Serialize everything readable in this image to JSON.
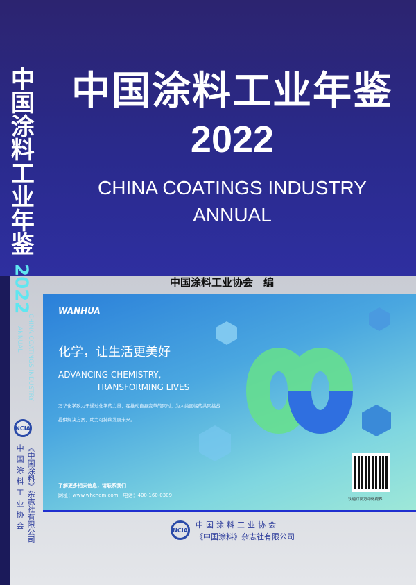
{
  "cover": {
    "title_cn": "中国涂料工业年鉴",
    "year": "2022",
    "title_en_line1": "CHINA COATINGS INDUSTRY",
    "title_en_line2": "ANNUAL",
    "editor": "中国涂料工业协会　编"
  },
  "spine": {
    "title_cn": "中国涂料工业年鉴",
    "year": "2022",
    "title_en_line1": "CHINA COATINGS INDUSTRY",
    "title_en_line2": "ANNUAL",
    "logo": "NCIA",
    "org1": "中国涂料工业协会",
    "org2": "《中国涂料》杂志社有限公司"
  },
  "ad": {
    "brand": "WANHUA",
    "slogan": "化学，让生活更美好",
    "en_line1": "ADVANCING CHEMISTRY,",
    "en_line2": "TRANSFORMING LIVES",
    "desc": "万华化学致力于通过化学的力量，在推动自身变革的同时，为人类面临的共同挑战提供解决方案，助力可持续发展未来。",
    "contact_title": "了解更多相关信息，请联系我们",
    "contact_info": "网址：www.whchem.com　电话：400-160-0309",
    "qr_caption": "欢迎订阅万华微视界",
    "colors": {
      "top": "#2a7fd9",
      "bottom": "#9ee8d8"
    }
  },
  "publisher": {
    "logo": "NCIA",
    "line1": "中国涂料工业协会",
    "line2": "《中国涂料》杂志社有限公司"
  }
}
